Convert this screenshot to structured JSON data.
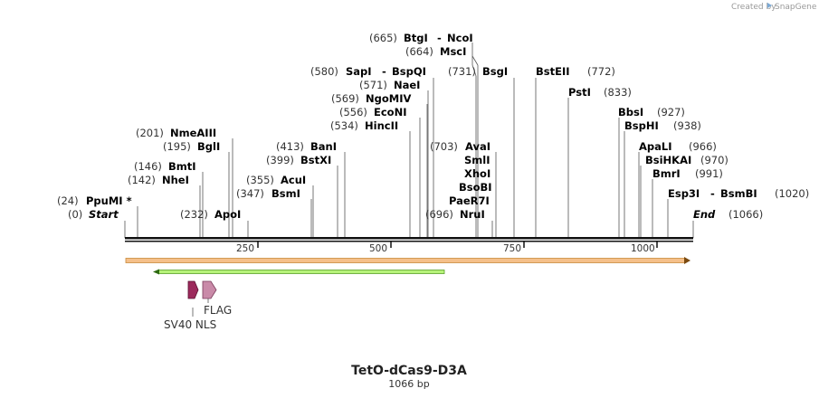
{
  "credit": "Created by",
  "brand": "SnapGene",
  "title": "TetO-dCas9-D3A",
  "subtitle": "1066 bp",
  "scale_ticks": [
    "250",
    "500",
    "750",
    "1000"
  ],
  "sites": [
    {
      "pos": "(665)",
      "name": "BtgI",
      "sep": "-",
      "name2": "NcoI"
    },
    {
      "pos": "(664)",
      "name": "MscI"
    },
    {
      "pos": "(580)",
      "name": "SapI",
      "sep": "-",
      "name2": "BspQI"
    },
    {
      "pos": "(731)",
      "name": "BsgI"
    },
    {
      "name": "BstEII",
      "pos": "(772)"
    },
    {
      "pos": "(571)",
      "name": "NaeI"
    },
    {
      "name": "PstI",
      "pos": "(833)"
    },
    {
      "pos": "(569)",
      "name": "NgoMIV"
    },
    {
      "pos": "(556)",
      "name": "EcoNI"
    },
    {
      "name": "BbsI",
      "pos": "(927)"
    },
    {
      "pos": "(534)",
      "name": "HincII"
    },
    {
      "name": "BspHI",
      "pos": "(938)"
    },
    {
      "pos": "(201)",
      "name": "NmeAIII"
    },
    {
      "pos": "(195)",
      "name": "BglI"
    },
    {
      "pos": "(413)",
      "name": "BanI"
    },
    {
      "pos": "(703)",
      "name": "AvaI"
    },
    {
      "name": "ApaLI",
      "pos": "(966)"
    },
    {
      "pos": "(399)",
      "name": "BstXI"
    },
    {
      "name": "SmlI"
    },
    {
      "name": "BsiHKAI",
      "pos": "(970)"
    },
    {
      "pos": "(146)",
      "name": "BmtI"
    },
    {
      "name": "XhoI"
    },
    {
      "name": "BmrI",
      "pos": "(991)"
    },
    {
      "pos": "(142)",
      "name": "NheI"
    },
    {
      "pos": "(355)",
      "name": "AcuI"
    },
    {
      "name": "BsoBI"
    },
    {
      "pos": "(347)",
      "name": "BsmI"
    },
    {
      "name": "Esp3I",
      "sep": "-",
      "name2": "BsmBI",
      "pos": "(1020)"
    },
    {
      "pos": "(24)",
      "name": "PpuMI *"
    },
    {
      "name": "PaeR7I"
    },
    {
      "pos": "(0)",
      "name": "Start"
    },
    {
      "pos": "(232)",
      "name": "ApoI"
    },
    {
      "pos": "(696)",
      "name": "NruI"
    },
    {
      "name": "End",
      "pos": "(1066)"
    }
  ],
  "features": {
    "sv40": "SV40 NLS",
    "flag": "FLAG"
  },
  "colors": {
    "orange_feature": "#f5c08a",
    "green_feature": "#b6f27a",
    "sv40": "#9c2a5c",
    "flag": "#c98aa8"
  }
}
